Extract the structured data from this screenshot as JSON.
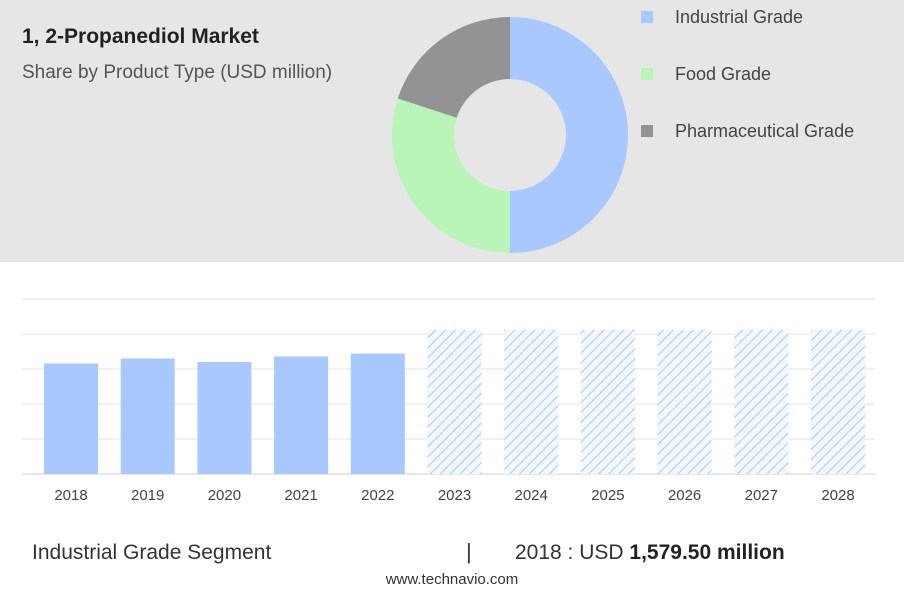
{
  "header": {
    "title": "1, 2-Propanediol Market",
    "subtitle": "Share by Product Type (USD million)"
  },
  "chart_data": [
    {
      "type": "pie",
      "style": "donut",
      "slices": [
        {
          "label": "Industrial Grade",
          "value": 50,
          "color": "#a8c8ff"
        },
        {
          "label": "Food Grade",
          "value": 30,
          "color": "#b9f4b9"
        },
        {
          "label": "Pharmaceutical Grade",
          "value": 20,
          "color": "#939393"
        }
      ],
      "legend_position": "right"
    },
    {
      "type": "bar",
      "categories": [
        "2018",
        "2019",
        "2020",
        "2021",
        "2022",
        "2023",
        "2024",
        "2025",
        "2026",
        "2027",
        "2028"
      ],
      "values": [
        1579.5,
        1650,
        1600,
        1680,
        1720,
        2060,
        2060,
        2060,
        2060,
        2060,
        2060
      ],
      "forecast_from_index": 5,
      "ylim": [
        0,
        2500
      ],
      "grid": true,
      "bar_color": "#a8c8ff"
    }
  ],
  "footer": {
    "segment_label": "Industrial Grade Segment",
    "divider": "|",
    "value_prefix": "2018 : USD ",
    "value_bold": "1,579.50 million"
  },
  "source": "www.technavio.com"
}
